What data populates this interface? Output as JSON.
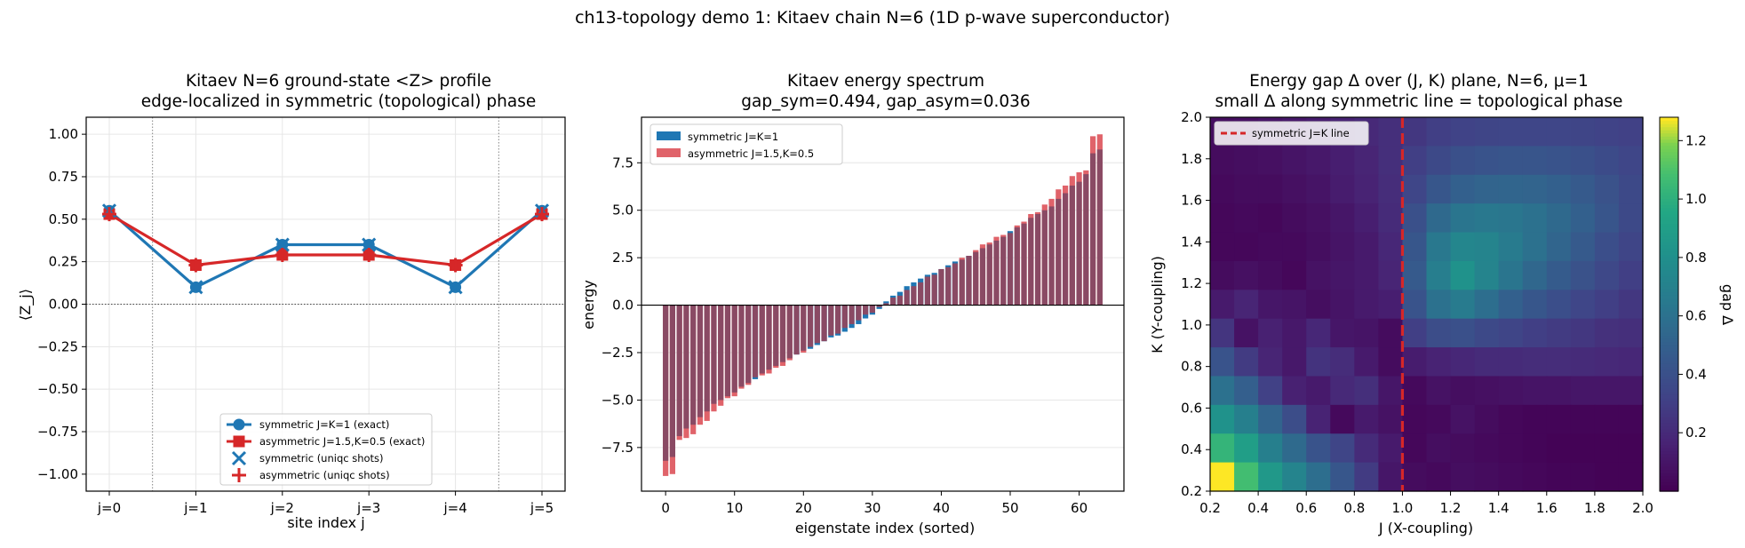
{
  "figure": {
    "suptitle": "ch13-topology demo 1: Kitaev chain N=6  (1D p-wave superconductor)"
  },
  "colors": {
    "symmetric": "#1f77b4",
    "asymmetric": "#d62728",
    "sym_bar": "#1f77b4",
    "asym_bar": "#e0636a",
    "overlap_bar": "#8a4a64",
    "refline": "#d62728",
    "grid": "#e6e6e6"
  },
  "chart_data": [
    {
      "type": "line",
      "title": "Kitaev N=6 ground-state <Z> profile\nedge-localized in symmetric (topological) phase",
      "xlabel": "site index j",
      "ylabel": "⟨Z_j⟩",
      "categories": [
        "j=0",
        "j=1",
        "j=2",
        "j=3",
        "j=4",
        "j=5"
      ],
      "ylim": [
        -1.1,
        1.1
      ],
      "yticks": [
        "1.00",
        "0.75",
        "0.50",
        "0.25",
        "0.00",
        "−0.25",
        "−0.50",
        "−0.75",
        "−1.00"
      ],
      "ytick_values": [
        1.0,
        0.75,
        0.5,
        0.25,
        0.0,
        -0.25,
        -0.5,
        -0.75,
        -1.0
      ],
      "grid": true,
      "legend_position": "lower-center",
      "series": [
        {
          "name": "symmetric J=K=1 (exact)",
          "values": [
            0.55,
            0.1,
            0.35,
            0.35,
            0.1,
            0.55
          ],
          "marker": "circle",
          "color": "#1f77b4"
        },
        {
          "name": "asymmetric J=1.5,K=0.5 (exact)",
          "values": [
            0.53,
            0.23,
            0.29,
            0.29,
            0.23,
            0.53
          ],
          "marker": "square",
          "color": "#d62728"
        },
        {
          "name": "symmetric (uniqc shots)",
          "values": [
            0.55,
            0.1,
            0.35,
            0.35,
            0.1,
            0.55
          ],
          "marker": "x",
          "color": "#1f77b4"
        },
        {
          "name": "asymmetric (uniqc shots)",
          "values": [
            0.53,
            0.23,
            0.29,
            0.29,
            0.23,
            0.53
          ],
          "marker": "plus",
          "color": "#d62728"
        }
      ]
    },
    {
      "type": "bar",
      "title": "Kitaev energy spectrum\ngap_sym=0.494, gap_asym=0.036",
      "xlabel": "eigenstate index (sorted)",
      "ylabel": "energy",
      "xlim": [
        -3.5,
        66.5
      ],
      "ylim": [
        -9.8,
        9.9
      ],
      "xticks": [
        0,
        10,
        20,
        30,
        40,
        50,
        60
      ],
      "yticks": [
        "7.5",
        "5.0",
        "2.5",
        "0.0",
        "−2.5",
        "−5.0",
        "−7.5"
      ],
      "ytick_values": [
        7.5,
        5.0,
        2.5,
        0.0,
        -2.5,
        -5.0,
        -7.5
      ],
      "grid": true,
      "legend_position": "top-left",
      "series": [
        {
          "name": "symmetric J=K=1",
          "values": [
            -8.2,
            -8.0,
            -6.9,
            -6.5,
            -6.3,
            -5.9,
            -5.6,
            -5.2,
            -5.0,
            -4.8,
            -4.6,
            -4.3,
            -4.1,
            -3.9,
            -3.6,
            -3.4,
            -3.2,
            -3.0,
            -2.8,
            -2.6,
            -2.4,
            -2.3,
            -2.1,
            -1.9,
            -1.7,
            -1.6,
            -1.4,
            -1.2,
            -1.0,
            -0.7,
            -0.5,
            -0.2,
            0.2,
            0.5,
            0.7,
            1.0,
            1.2,
            1.4,
            1.6,
            1.7,
            1.9,
            2.1,
            2.3,
            2.4,
            2.6,
            2.8,
            3.0,
            3.2,
            3.4,
            3.6,
            3.9,
            4.1,
            4.3,
            4.6,
            4.8,
            5.0,
            5.2,
            5.6,
            5.9,
            6.3,
            6.5,
            6.9,
            8.0,
            8.2
          ]
        },
        {
          "name": "asymmetric J=1.5,K=0.5",
          "values": [
            -9.0,
            -8.9,
            -7.1,
            -7.0,
            -6.8,
            -6.3,
            -6.1,
            -5.6,
            -5.3,
            -4.9,
            -4.8,
            -4.4,
            -4.2,
            -3.8,
            -3.7,
            -3.6,
            -3.3,
            -3.2,
            -2.9,
            -2.6,
            -2.5,
            -2.2,
            -2.0,
            -1.9,
            -1.6,
            -1.5,
            -1.2,
            -1.0,
            -0.8,
            -0.5,
            -0.4,
            -0.1,
            0.1,
            0.4,
            0.5,
            0.8,
            1.0,
            1.2,
            1.5,
            1.6,
            1.9,
            2.0,
            2.2,
            2.5,
            2.6,
            2.9,
            3.2,
            3.3,
            3.6,
            3.7,
            3.8,
            4.2,
            4.4,
            4.8,
            4.9,
            5.3,
            5.6,
            6.1,
            6.3,
            6.8,
            7.0,
            7.1,
            8.9,
            9.0
          ]
        }
      ]
    },
    {
      "type": "heatmap",
      "title": "Energy gap Δ over (J, K) plane, N=6, μ=1\nsmall Δ along symmetric line = topological phase",
      "xlabel": "J (X-coupling)",
      "ylabel": "K (Y-coupling)",
      "xlim": [
        0.2,
        2.0
      ],
      "ylim": [
        0.2,
        2.0
      ],
      "xticks": [
        "0.2",
        "0.4",
        "0.6",
        "0.8",
        "1.0",
        "1.2",
        "1.4",
        "1.6",
        "1.8",
        "2.0"
      ],
      "yticks": [
        "2.0",
        "1.8",
        "1.6",
        "1.4",
        "1.2",
        "1.0",
        "0.8",
        "0.6",
        "0.4",
        "0.2"
      ],
      "colorbar_label": "gap Δ",
      "colorbar_ticks": [
        "1.2",
        "1.0",
        "0.8",
        "0.6",
        "0.4",
        "0.2"
      ],
      "colorbar_range": [
        0.0,
        1.28
      ],
      "legend": "symmetric J=K line",
      "legend_position": "top-left",
      "rows_top_to_bottom": [
        [
          0.06,
          0.07,
          0.09,
          0.11,
          0.13,
          0.16,
          0.19,
          0.22,
          0.26,
          0.3,
          0.32,
          0.33,
          0.34,
          0.34,
          0.34,
          0.33,
          0.32,
          0.31
        ],
        [
          0.05,
          0.06,
          0.07,
          0.09,
          0.11,
          0.14,
          0.17,
          0.22,
          0.3,
          0.36,
          0.4,
          0.42,
          0.43,
          0.43,
          0.42,
          0.4,
          0.37,
          0.34
        ],
        [
          0.04,
          0.05,
          0.05,
          0.07,
          0.09,
          0.13,
          0.16,
          0.21,
          0.34,
          0.44,
          0.5,
          0.52,
          0.53,
          0.52,
          0.5,
          0.46,
          0.41,
          0.36
        ],
        [
          0.03,
          0.04,
          0.03,
          0.05,
          0.07,
          0.1,
          0.14,
          0.2,
          0.4,
          0.55,
          0.62,
          0.64,
          0.63,
          0.6,
          0.55,
          0.5,
          0.43,
          0.36
        ],
        [
          0.03,
          0.03,
          0.04,
          0.04,
          0.06,
          0.09,
          0.12,
          0.18,
          0.44,
          0.64,
          0.74,
          0.72,
          0.66,
          0.6,
          0.53,
          0.46,
          0.39,
          0.33
        ],
        [
          0.05,
          0.07,
          0.05,
          0.03,
          0.08,
          0.1,
          0.12,
          0.17,
          0.46,
          0.68,
          0.82,
          0.72,
          0.62,
          0.54,
          0.47,
          0.41,
          0.35,
          0.3
        ],
        [
          0.12,
          0.17,
          0.1,
          0.09,
          0.06,
          0.09,
          0.12,
          0.14,
          0.42,
          0.6,
          0.66,
          0.58,
          0.5,
          0.44,
          0.39,
          0.34,
          0.3,
          0.26
        ],
        [
          0.25,
          0.08,
          0.15,
          0.11,
          0.18,
          0.1,
          0.09,
          0.05,
          0.3,
          0.38,
          0.4,
          0.36,
          0.33,
          0.3,
          0.28,
          0.26,
          0.23,
          0.22
        ],
        [
          0.42,
          0.28,
          0.17,
          0.11,
          0.24,
          0.21,
          0.12,
          0.05,
          0.13,
          0.16,
          0.18,
          0.2,
          0.2,
          0.21,
          0.21,
          0.2,
          0.19,
          0.18
        ],
        [
          0.6,
          0.49,
          0.31,
          0.15,
          0.12,
          0.19,
          0.22,
          0.1,
          0.04,
          0.08,
          0.06,
          0.07,
          0.08,
          0.09,
          0.09,
          0.1,
          0.1,
          0.1
        ],
        [
          0.82,
          0.69,
          0.52,
          0.38,
          0.16,
          0.04,
          0.12,
          0.08,
          0.03,
          0.04,
          0.08,
          0.05,
          0.03,
          0.02,
          0.02,
          0.02,
          0.02,
          0.02
        ],
        [
          1.03,
          0.9,
          0.69,
          0.56,
          0.42,
          0.33,
          0.2,
          0.12,
          0.03,
          0.06,
          0.05,
          0.04,
          0.03,
          0.02,
          0.01,
          0.01,
          0.01,
          0.01
        ],
        [
          1.28,
          1.08,
          0.86,
          0.72,
          0.58,
          0.44,
          0.28,
          0.1,
          0.05,
          0.04,
          0.06,
          0.05,
          0.04,
          0.03,
          0.02,
          0.02,
          0.01,
          0.01
        ]
      ]
    }
  ]
}
